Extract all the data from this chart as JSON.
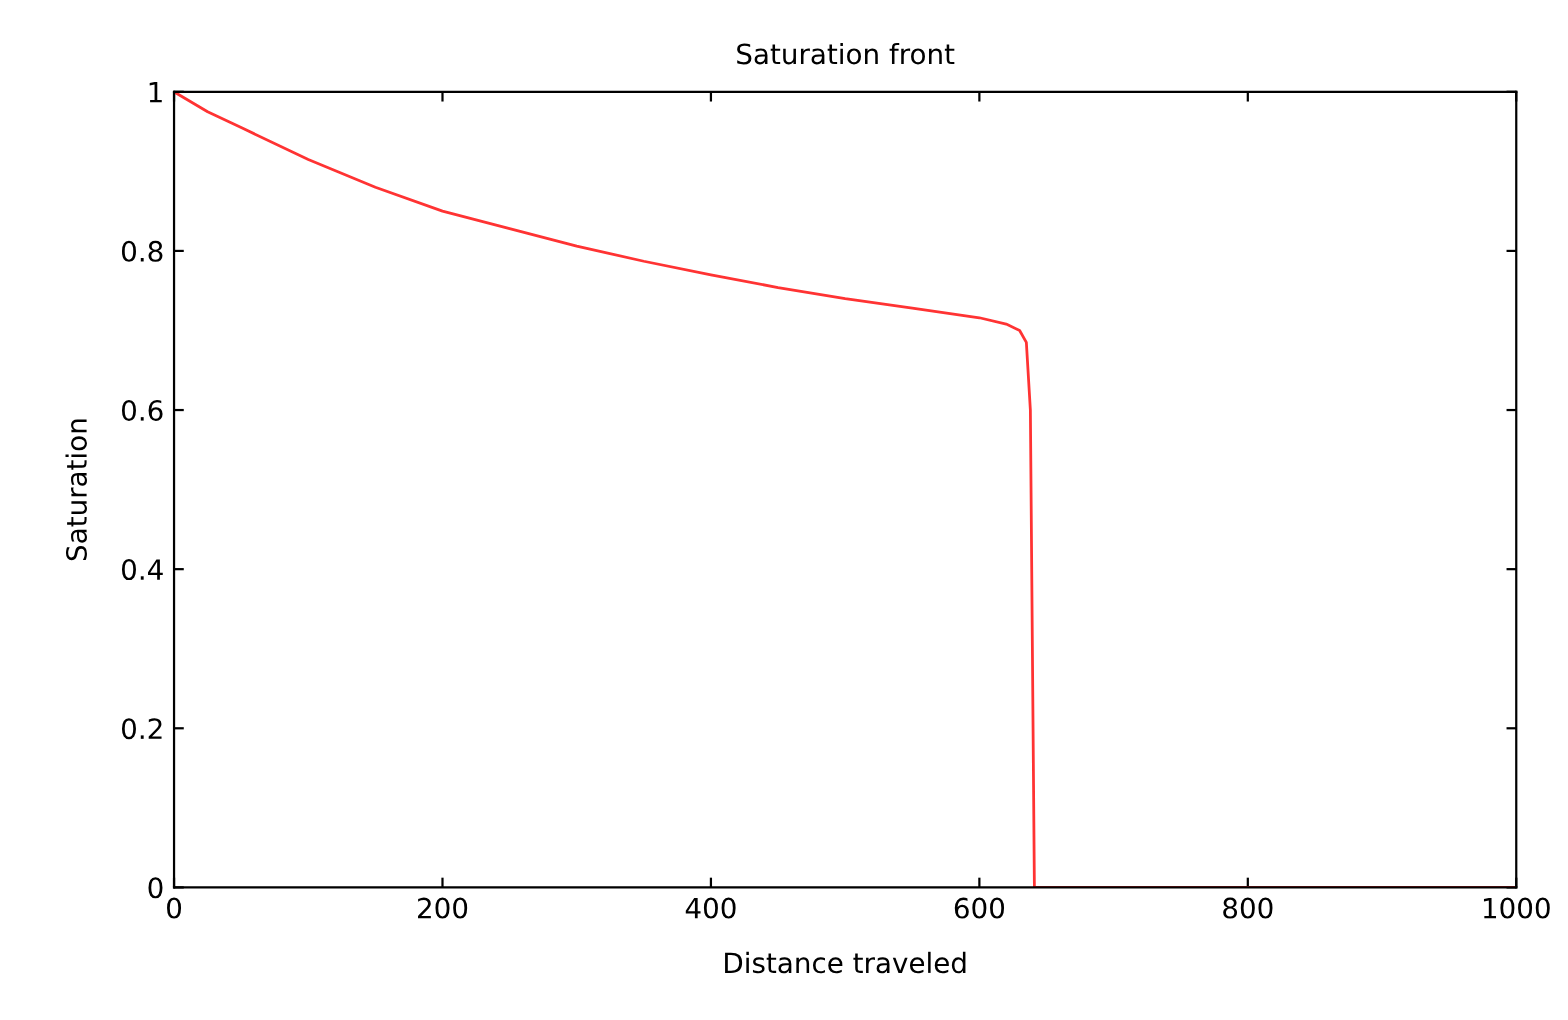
{
  "chart_data": {
    "type": "line",
    "title": "Saturation front",
    "xlabel": "Distance traveled",
    "ylabel": "Saturation",
    "x": [
      0,
      25,
      50,
      100,
      150,
      200,
      250,
      300,
      350,
      400,
      450,
      500,
      550,
      600,
      620,
      630,
      635,
      638,
      639,
      640,
      641,
      1000
    ],
    "series": [
      {
        "color": "#ff3333",
        "values": [
          1.0,
          0.975,
          0.955,
          0.915,
          0.88,
          0.85,
          0.828,
          0.806,
          0.787,
          0.77,
          0.754,
          0.74,
          0.728,
          0.716,
          0.708,
          0.7,
          0.685,
          0.6,
          0.4,
          0.2,
          0,
          0
        ]
      }
    ],
    "xlim": [
      0,
      1000
    ],
    "ylim": [
      0,
      1
    ],
    "xticks": [
      0,
      200,
      400,
      600,
      800,
      1000
    ],
    "yticks": [
      0,
      0.2,
      0.4,
      0.6,
      0.8,
      1
    ],
    "grid": false,
    "legend": false,
    "marker": "none",
    "line_style": "solid"
  }
}
